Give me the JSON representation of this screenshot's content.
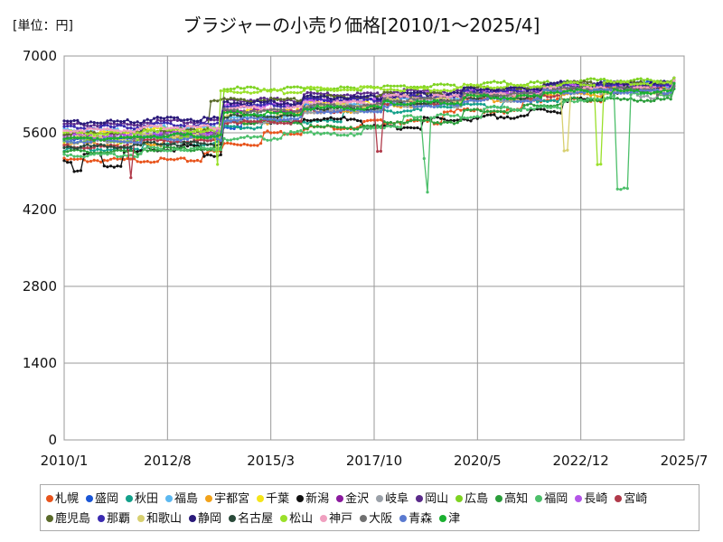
{
  "chart_data": {
    "type": "line",
    "title": "ブラジャーの小売り価格[2010/1～2025/4]",
    "unit_label": "[単位：円]",
    "xlabel": "",
    "ylabel": "",
    "ylim": [
      0,
      7000
    ],
    "y_ticks": [
      0,
      1400,
      2800,
      4200,
      5600,
      7000
    ],
    "x_ticks": [
      "2010/1",
      "2012/8",
      "2015/3",
      "2017/10",
      "2020/5",
      "2022/12",
      "2025/7"
    ],
    "x_range_months": [
      0,
      186
    ],
    "grid": true,
    "legend_position": "bottom",
    "series": [
      {
        "name": "札幌",
        "color": "#e8541c",
        "values": [
          [
            0,
            5100
          ],
          [
            36,
            5100
          ],
          [
            42,
            5250
          ],
          [
            48,
            5400
          ],
          [
            60,
            5600
          ],
          [
            72,
            5700
          ],
          [
            90,
            5800
          ],
          [
            114,
            6000
          ],
          [
            138,
            6200
          ],
          [
            162,
            6400
          ],
          [
            183,
            6500
          ]
        ]
      },
      {
        "name": "盛岡",
        "color": "#1a56d6",
        "values": [
          [
            0,
            5500
          ],
          [
            24,
            5550
          ],
          [
            46,
            5700
          ],
          [
            54,
            5900
          ],
          [
            72,
            6100
          ],
          [
            96,
            6200
          ],
          [
            108,
            6250
          ],
          [
            120,
            6300
          ],
          [
            138,
            6350
          ],
          [
            162,
            6500
          ],
          [
            183,
            6550
          ]
        ]
      },
      {
        "name": "秋田",
        "color": "#13a08a",
        "values": [
          [
            0,
            5300
          ],
          [
            24,
            5400
          ],
          [
            48,
            5700
          ],
          [
            60,
            5800
          ],
          [
            84,
            6000
          ],
          [
            108,
            6100
          ],
          [
            132,
            6200
          ],
          [
            150,
            6400
          ],
          [
            183,
            6500
          ]
        ]
      },
      {
        "name": "福島",
        "color": "#5cb8f0",
        "values": [
          [
            0,
            5650
          ],
          [
            24,
            5700
          ],
          [
            48,
            5900
          ],
          [
            72,
            6100
          ],
          [
            96,
            6200
          ],
          [
            120,
            6300
          ],
          [
            144,
            6450
          ],
          [
            183,
            6550
          ]
        ]
      },
      {
        "name": "宇都宮",
        "color": "#f2a21a",
        "values": [
          [
            0,
            5400
          ],
          [
            30,
            5500
          ],
          [
            48,
            5800
          ],
          [
            66,
            6000
          ],
          [
            90,
            6100
          ],
          [
            114,
            6200
          ],
          [
            138,
            6300
          ],
          [
            162,
            6450
          ],
          [
            183,
            6550
          ]
        ]
      },
      {
        "name": "千葉",
        "color": "#f5e51a",
        "values": [
          [
            0,
            5600
          ],
          [
            24,
            5650
          ],
          [
            48,
            6000
          ],
          [
            72,
            6150
          ],
          [
            96,
            6250
          ],
          [
            120,
            6300
          ],
          [
            150,
            6400
          ],
          [
            183,
            6500
          ]
        ]
      },
      {
        "name": "新潟",
        "color": "#111111",
        "values": [
          [
            0,
            5100
          ],
          [
            3,
            4900
          ],
          [
            6,
            5200
          ],
          [
            12,
            5000
          ],
          [
            18,
            5250
          ],
          [
            24,
            5300
          ],
          [
            36,
            5350
          ],
          [
            42,
            5200
          ],
          [
            48,
            5800
          ],
          [
            72,
            5850
          ],
          [
            90,
            5700
          ],
          [
            108,
            5850
          ],
          [
            126,
            5900
          ],
          [
            140,
            6000
          ],
          [
            150,
            6200
          ],
          [
            162,
            6350
          ],
          [
            176,
            6400
          ],
          [
            183,
            6500
          ]
        ]
      },
      {
        "name": "金沢",
        "color": "#8b1a9e",
        "values": [
          [
            0,
            5550
          ],
          [
            30,
            5600
          ],
          [
            48,
            6000
          ],
          [
            72,
            6200
          ],
          [
            96,
            6250
          ],
          [
            120,
            6350
          ],
          [
            144,
            6450
          ],
          [
            183,
            6550
          ]
        ]
      },
      {
        "name": "岐阜",
        "color": "#9aa0a8",
        "values": [
          [
            0,
            5450
          ],
          [
            24,
            5500
          ],
          [
            48,
            5800
          ],
          [
            72,
            6000
          ],
          [
            96,
            6100
          ],
          [
            120,
            6200
          ],
          [
            144,
            6350
          ],
          [
            172,
            6250
          ],
          [
            178,
            6300
          ],
          [
            183,
            6450
          ]
        ]
      },
      {
        "name": "岡山",
        "color": "#5a2a8a",
        "values": [
          [
            0,
            5750
          ],
          [
            24,
            5800
          ],
          [
            48,
            6200
          ],
          [
            72,
            6300
          ],
          [
            96,
            6350
          ],
          [
            120,
            6400
          ],
          [
            144,
            6500
          ],
          [
            183,
            6600
          ]
        ]
      },
      {
        "name": "広島",
        "color": "#7ed321",
        "values": [
          [
            0,
            5450
          ],
          [
            24,
            5500
          ],
          [
            42,
            5650
          ],
          [
            48,
            6400
          ],
          [
            78,
            6400
          ],
          [
            90,
            6450
          ],
          [
            102,
            6450
          ],
          [
            126,
            6500
          ],
          [
            150,
            6550
          ],
          [
            183,
            6600
          ]
        ]
      },
      {
        "name": "高知",
        "color": "#2a9d3a",
        "values": [
          [
            0,
            5250
          ],
          [
            24,
            5300
          ],
          [
            48,
            5800
          ],
          [
            72,
            5700
          ],
          [
            96,
            5800
          ],
          [
            120,
            6000
          ],
          [
            138,
            6100
          ],
          [
            150,
            6200
          ],
          [
            183,
            6400
          ]
        ]
      },
      {
        "name": "福岡",
        "color": "#4cbf6a",
        "values": [
          [
            0,
            5200
          ],
          [
            24,
            5300
          ],
          [
            48,
            5500
          ],
          [
            66,
            5600
          ],
          [
            82,
            5550
          ],
          [
            90,
            5700
          ],
          [
            102,
            5900
          ],
          [
            108,
            5150
          ],
          [
            109,
            4550
          ],
          [
            110,
            5900
          ],
          [
            126,
            6050
          ],
          [
            150,
            6200
          ],
          [
            164,
            6300
          ],
          [
            166,
            4600
          ],
          [
            168,
            4600
          ],
          [
            170,
            6300
          ],
          [
            183,
            6450
          ]
        ]
      },
      {
        "name": "長崎",
        "color": "#b455e8",
        "values": [
          [
            0,
            5550
          ],
          [
            24,
            5600
          ],
          [
            48,
            6100
          ],
          [
            72,
            6200
          ],
          [
            96,
            6300
          ],
          [
            120,
            6350
          ],
          [
            144,
            6450
          ],
          [
            183,
            6550
          ]
        ]
      },
      {
        "name": "宮崎",
        "color": "#b03a4a",
        "values": [
          [
            0,
            5350
          ],
          [
            18,
            5400
          ],
          [
            20,
            4800
          ],
          [
            21,
            5450
          ],
          [
            48,
            5800
          ],
          [
            72,
            6000
          ],
          [
            90,
            6100
          ],
          [
            94,
            5300
          ],
          [
            96,
            6150
          ],
          [
            120,
            6250
          ],
          [
            150,
            6400
          ],
          [
            183,
            6500
          ]
        ]
      },
      {
        "name": "鹿児島",
        "color": "#5a6a2a",
        "values": [
          [
            0,
            5600
          ],
          [
            24,
            5650
          ],
          [
            44,
            6200
          ],
          [
            72,
            6250
          ],
          [
            96,
            6300
          ],
          [
            120,
            6400
          ],
          [
            144,
            6500
          ],
          [
            183,
            6550
          ]
        ]
      },
      {
        "name": "那覇",
        "color": "#3a2ab0",
        "values": [
          [
            0,
            5700
          ],
          [
            24,
            5750
          ],
          [
            48,
            6100
          ],
          [
            72,
            6200
          ],
          [
            96,
            6250
          ],
          [
            120,
            6350
          ],
          [
            144,
            6450
          ],
          [
            183,
            6550
          ]
        ]
      },
      {
        "name": "和歌山",
        "color": "#d8d070",
        "values": [
          [
            0,
            5500
          ],
          [
            24,
            5550
          ],
          [
            48,
            5900
          ],
          [
            72,
            6100
          ],
          [
            96,
            6200
          ],
          [
            120,
            6250
          ],
          [
            144,
            6350
          ],
          [
            150,
            5300
          ],
          [
            152,
            6350
          ],
          [
            183,
            6500
          ]
        ]
      },
      {
        "name": "静岡",
        "color": "#2a1a7a",
        "values": [
          [
            0,
            5800
          ],
          [
            24,
            5850
          ],
          [
            48,
            6150
          ],
          [
            72,
            6250
          ],
          [
            96,
            6300
          ],
          [
            120,
            6400
          ],
          [
            144,
            6500
          ],
          [
            183,
            6600
          ]
        ]
      },
      {
        "name": "名古屋",
        "color": "#2a4a3a",
        "values": [
          [
            0,
            5350
          ],
          [
            24,
            5400
          ],
          [
            48,
            5900
          ],
          [
            72,
            6050
          ],
          [
            96,
            6150
          ],
          [
            120,
            6250
          ],
          [
            144,
            6400
          ],
          [
            183,
            6500
          ]
        ]
      },
      {
        "name": "松山",
        "color": "#9ae02a",
        "values": [
          [
            0,
            5600
          ],
          [
            24,
            5650
          ],
          [
            46,
            5000
          ],
          [
            47,
            6350
          ],
          [
            72,
            6400
          ],
          [
            96,
            6400
          ],
          [
            120,
            6450
          ],
          [
            150,
            6500
          ],
          [
            160,
            5050
          ],
          [
            162,
            6500
          ],
          [
            183,
            6600
          ]
        ]
      },
      {
        "name": "神戸",
        "color": "#f0a0c0",
        "values": [
          [
            0,
            5650
          ],
          [
            24,
            5700
          ],
          [
            48,
            6050
          ],
          [
            72,
            6150
          ],
          [
            96,
            6250
          ],
          [
            120,
            6300
          ],
          [
            144,
            6400
          ],
          [
            183,
            6550
          ]
        ]
      },
      {
        "name": "大阪",
        "color": "#707070",
        "values": [
          [
            0,
            5500
          ],
          [
            24,
            5550
          ],
          [
            48,
            6000
          ],
          [
            72,
            6100
          ],
          [
            96,
            6200
          ],
          [
            120,
            6300
          ],
          [
            144,
            6400
          ],
          [
            178,
            6300
          ],
          [
            183,
            6450
          ]
        ]
      },
      {
        "name": "青森",
        "color": "#5a7ad0",
        "values": [
          [
            0,
            5450
          ],
          [
            24,
            5500
          ],
          [
            48,
            5850
          ],
          [
            72,
            6000
          ],
          [
            96,
            6100
          ],
          [
            120,
            6200
          ],
          [
            144,
            6350
          ],
          [
            183,
            6500
          ]
        ]
      },
      {
        "name": "津",
        "color": "#1ab030",
        "values": [
          [
            0,
            5500
          ],
          [
            24,
            5550
          ],
          [
            48,
            5950
          ],
          [
            72,
            6050
          ],
          [
            96,
            6150
          ],
          [
            120,
            6250
          ],
          [
            144,
            6350
          ],
          [
            183,
            6500
          ]
        ]
      }
    ]
  }
}
